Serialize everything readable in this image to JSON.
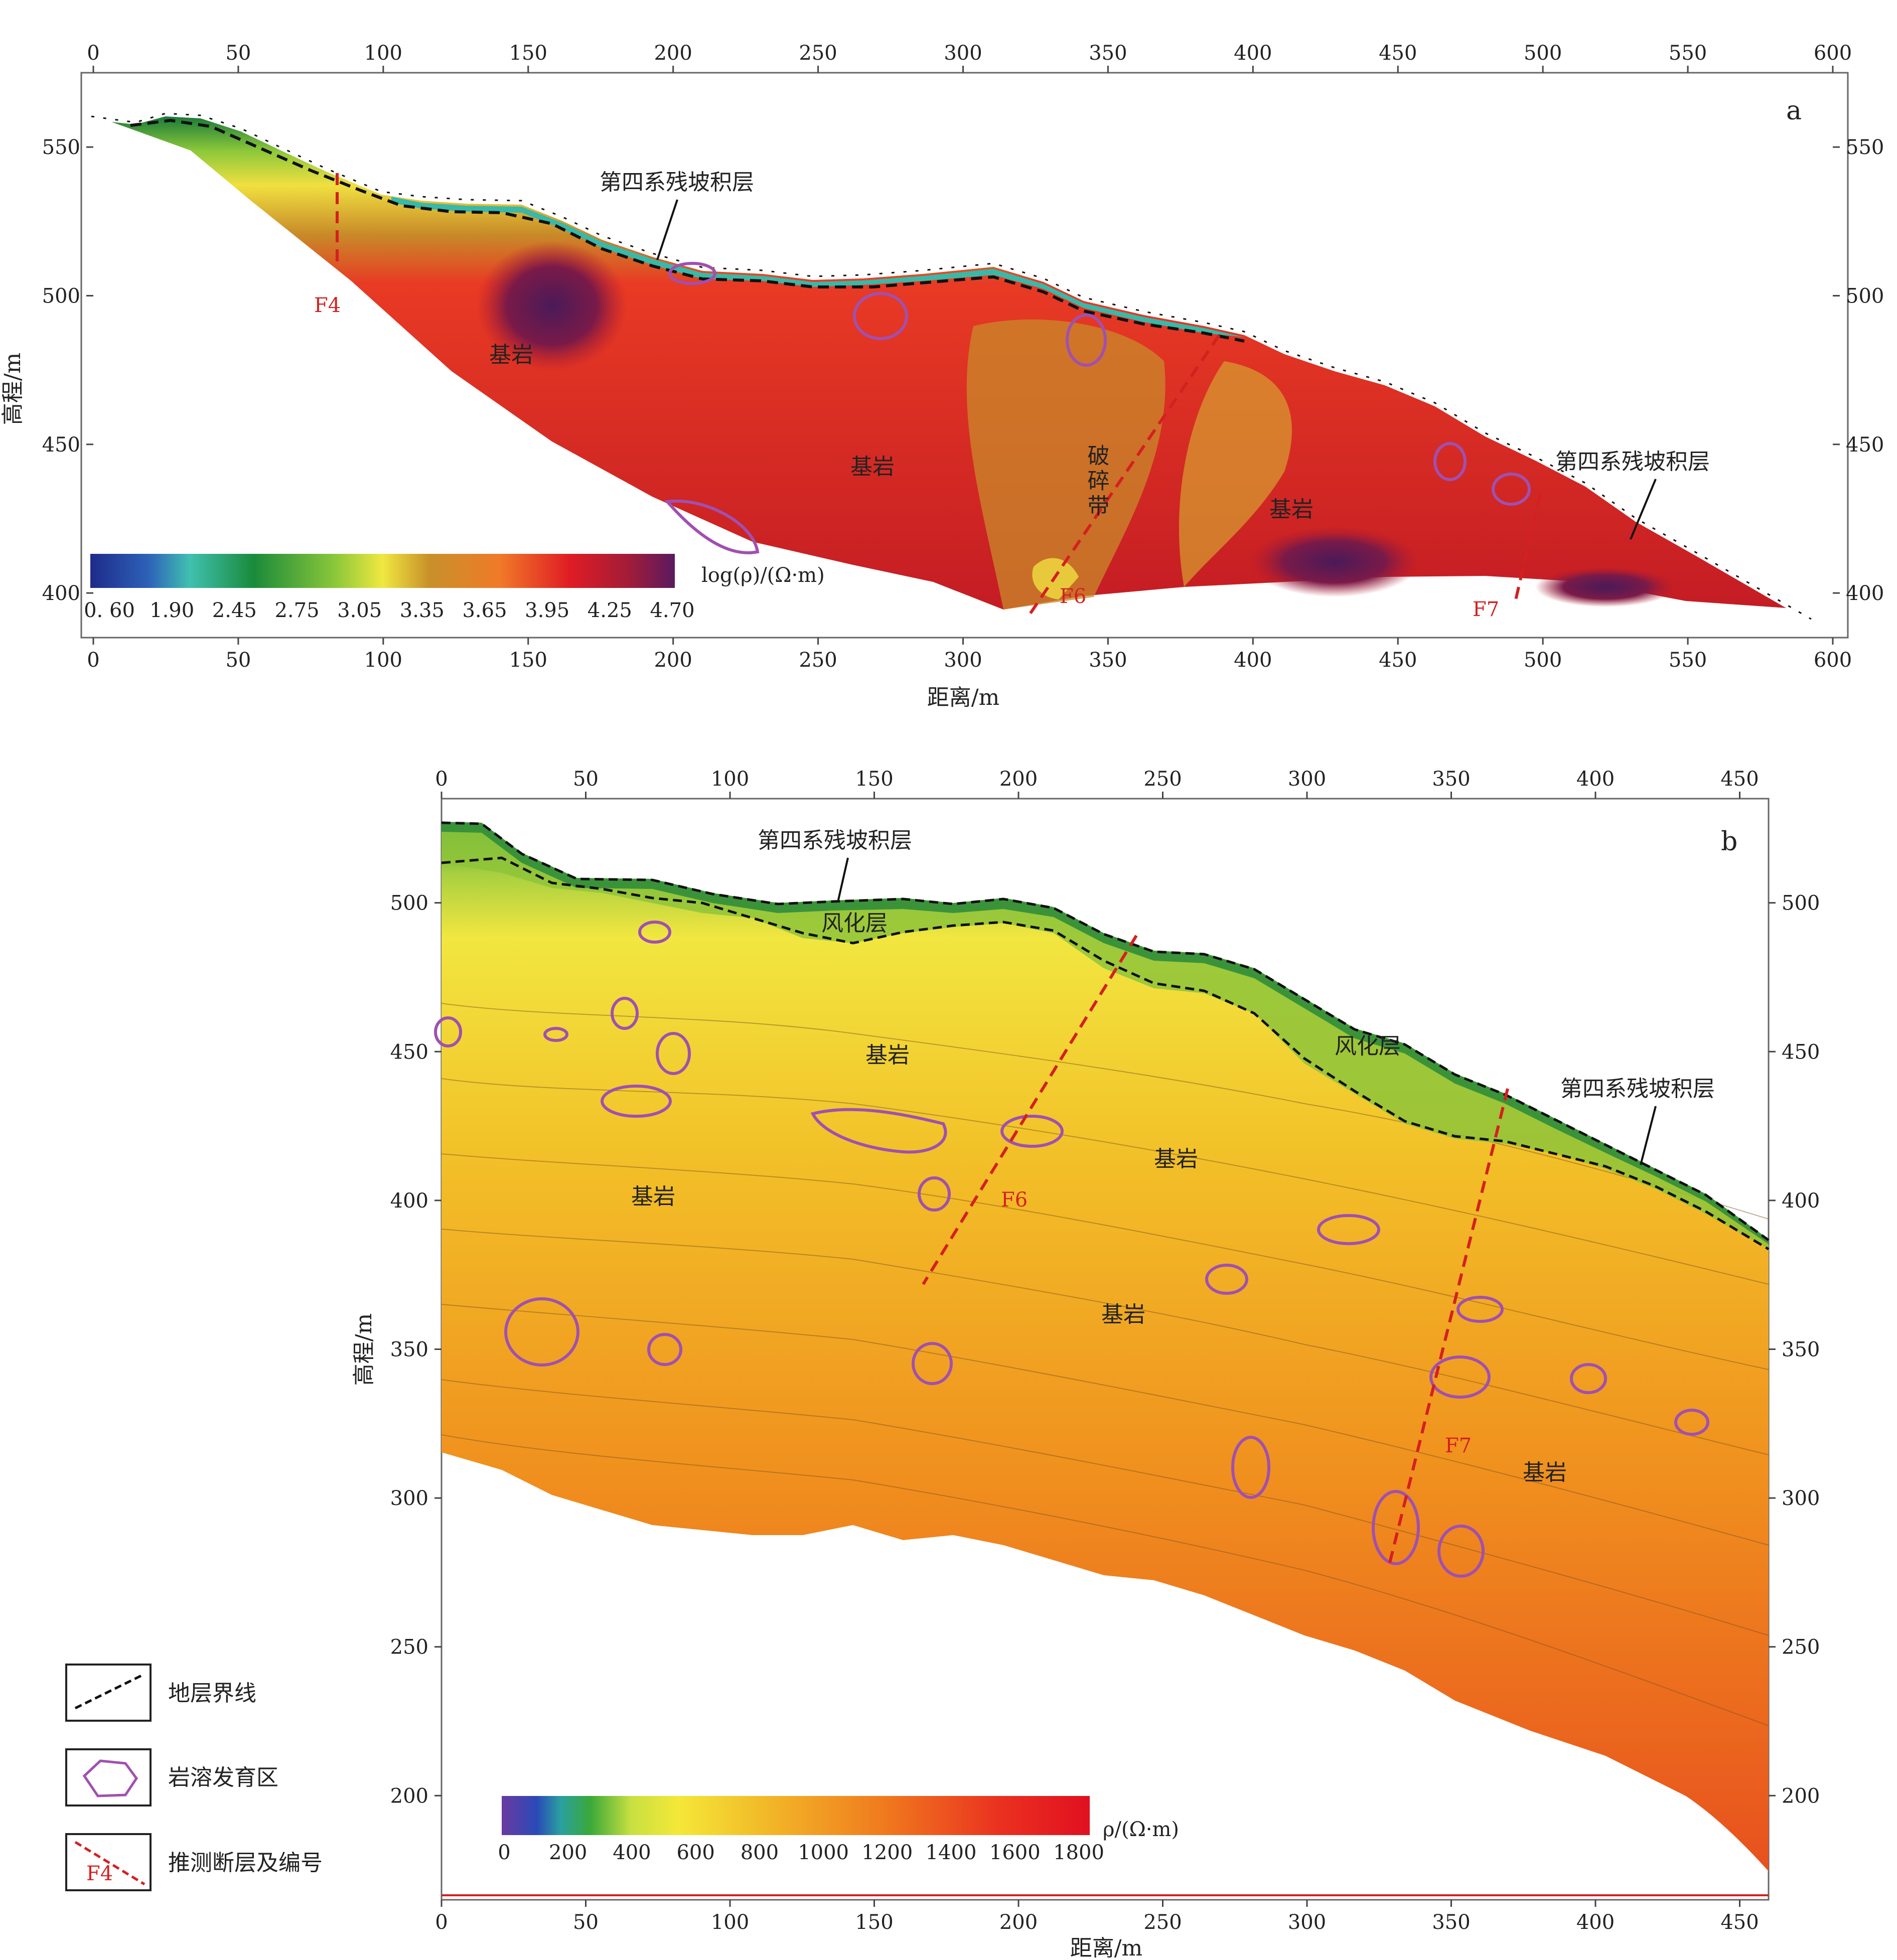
{
  "panel_a": {
    "label": "a",
    "xlabel": "距离/m",
    "ylabel": "高程/m",
    "x_ticks": [
      0,
      50,
      100,
      150,
      200,
      250,
      300,
      350,
      400,
      450,
      500,
      550,
      600
    ],
    "y_ticks": [
      400,
      450,
      500,
      550
    ],
    "xlim": [
      0,
      600
    ],
    "ylim": [
      385,
      575
    ],
    "colorbar_title": "log(ρ)/(Ω·m)",
    "colorbar_ticks": [
      "0. 60",
      "1.90",
      "2.45",
      "2.75",
      "3.05",
      "3.35",
      "3.65",
      "3.95",
      "4.25",
      "4.70"
    ],
    "annotations": {
      "quaternary_top": "第四系残坡积层",
      "quaternary_right": "第四系残坡积层",
      "bedrock_1": "基岩",
      "bedrock_2": "基岩",
      "bedrock_3": "基岩",
      "fracture_zone": "破碎带",
      "fault_f4": "F4",
      "fault_f6": "F6",
      "fault_f7": "F7"
    }
  },
  "panel_b": {
    "label": "b",
    "xlabel": "距离/m",
    "ylabel": "高程/m",
    "x_ticks": [
      0,
      50,
      100,
      150,
      200,
      250,
      300,
      350,
      400,
      450
    ],
    "y_ticks": [
      200,
      250,
      300,
      350,
      400,
      450,
      500
    ],
    "xlim": [
      0,
      460
    ],
    "ylim": [
      165,
      535
    ],
    "colorbar_title": "ρ/(Ω·m)",
    "colorbar_ticks": [
      "0",
      "200",
      "400",
      "600",
      "800",
      "1000",
      "1200",
      "1400",
      "1600",
      "1800"
    ],
    "annotations": {
      "quaternary_top": "第四系残坡积层",
      "quaternary_right": "第四系残坡积层",
      "weathered_1": "风化层",
      "weathered_2": "风化层",
      "bedrock_1": "基岩",
      "bedrock_2": "基岩",
      "bedrock_3": "基岩",
      "bedrock_4": "基岩",
      "bedrock_5": "基岩",
      "fault_f6": "F6",
      "fault_f7": "F7"
    }
  },
  "legend": {
    "items": [
      {
        "label": "地层界线"
      },
      {
        "label": "岩溶发育区"
      },
      {
        "label": "推测断层及编号",
        "sample_text": "F4"
      }
    ]
  },
  "colors": {
    "fault": "#d42020",
    "karst": "#a050b0",
    "boundary": "#111111"
  }
}
